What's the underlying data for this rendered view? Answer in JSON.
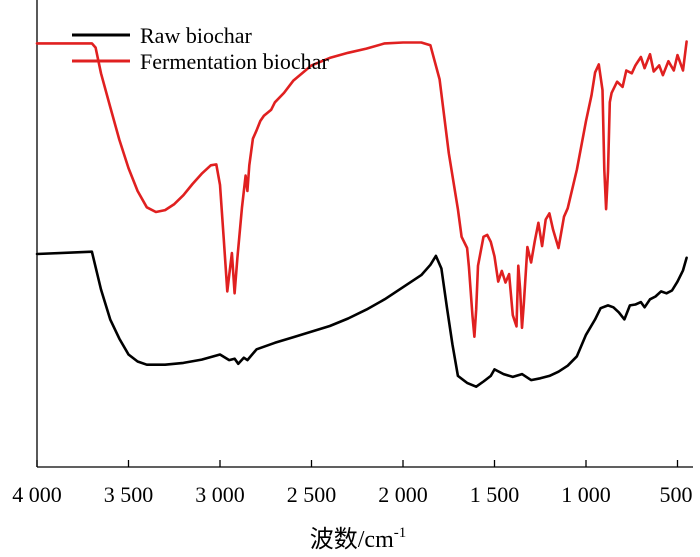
{
  "chart_data": {
    "type": "line",
    "xlabel": "波数/cm",
    "xlabel_superscript": "-1",
    "ylabel": "",
    "xlim": [
      4000,
      450
    ],
    "x_reversed": true,
    "ylim": [
      0,
      100
    ],
    "y_ticks_shown": false,
    "x_ticks": [
      4000,
      3500,
      3000,
      2500,
      2000,
      1500,
      1000,
      500
    ],
    "x_tick_labels": [
      "4 000",
      "3 500",
      "3 000",
      "2 500",
      "2 000",
      "1 500",
      "1 000",
      "500"
    ],
    "grid": false,
    "legend_position": "top-left",
    "series": [
      {
        "name": "Raw biochar",
        "color": "#000000",
        "points": [
          [
            4000,
            45.6
          ],
          [
            3700,
            46.1
          ],
          [
            3650,
            38.0
          ],
          [
            3600,
            31.6
          ],
          [
            3550,
            27.5
          ],
          [
            3500,
            24.1
          ],
          [
            3450,
            22.6
          ],
          [
            3400,
            21.9
          ],
          [
            3300,
            21.9
          ],
          [
            3200,
            22.3
          ],
          [
            3100,
            23.0
          ],
          [
            3000,
            24.1
          ],
          [
            2950,
            22.9
          ],
          [
            2920,
            23.2
          ],
          [
            2900,
            22.1
          ],
          [
            2870,
            23.4
          ],
          [
            2850,
            22.9
          ],
          [
            2800,
            25.2
          ],
          [
            2700,
            26.6
          ],
          [
            2600,
            27.8
          ],
          [
            2500,
            29.0
          ],
          [
            2400,
            30.2
          ],
          [
            2300,
            31.8
          ],
          [
            2200,
            33.7
          ],
          [
            2100,
            35.9
          ],
          [
            2000,
            38.5
          ],
          [
            1900,
            41.1
          ],
          [
            1850,
            43.3
          ],
          [
            1820,
            45.2
          ],
          [
            1790,
            42.5
          ],
          [
            1760,
            34.2
          ],
          [
            1730,
            26.3
          ],
          [
            1700,
            19.5
          ],
          [
            1650,
            18.0
          ],
          [
            1600,
            17.2
          ],
          [
            1560,
            18.3
          ],
          [
            1520,
            19.5
          ],
          [
            1500,
            20.9
          ],
          [
            1450,
            19.9
          ],
          [
            1400,
            19.3
          ],
          [
            1350,
            19.9
          ],
          [
            1300,
            18.6
          ],
          [
            1250,
            19.0
          ],
          [
            1200,
            19.5
          ],
          [
            1150,
            20.4
          ],
          [
            1100,
            21.7
          ],
          [
            1050,
            23.7
          ],
          [
            1000,
            28.3
          ],
          [
            950,
            31.6
          ],
          [
            920,
            34.0
          ],
          [
            880,
            34.6
          ],
          [
            850,
            34.2
          ],
          [
            820,
            33.1
          ],
          [
            790,
            31.6
          ],
          [
            760,
            34.6
          ],
          [
            730,
            34.8
          ],
          [
            700,
            35.3
          ],
          [
            680,
            34.2
          ],
          [
            650,
            35.9
          ],
          [
            620,
            36.5
          ],
          [
            590,
            37.6
          ],
          [
            560,
            37.2
          ],
          [
            530,
            37.8
          ],
          [
            500,
            39.7
          ],
          [
            470,
            42.1
          ],
          [
            450,
            44.8
          ]
        ]
      },
      {
        "name": "Fermentation biochar",
        "color": "#e02020",
        "points": [
          [
            4000,
            90.7
          ],
          [
            3700,
            90.7
          ],
          [
            3680,
            89.8
          ],
          [
            3650,
            84.3
          ],
          [
            3600,
            77.1
          ],
          [
            3550,
            70.1
          ],
          [
            3500,
            64.0
          ],
          [
            3450,
            59.1
          ],
          [
            3400,
            55.6
          ],
          [
            3350,
            54.6
          ],
          [
            3300,
            55.0
          ],
          [
            3250,
            56.3
          ],
          [
            3200,
            58.2
          ],
          [
            3150,
            60.6
          ],
          [
            3100,
            62.8
          ],
          [
            3050,
            64.6
          ],
          [
            3020,
            64.8
          ],
          [
            3000,
            60.4
          ],
          [
            2980,
            49.0
          ],
          [
            2960,
            37.6
          ],
          [
            2950,
            41.1
          ],
          [
            2935,
            45.8
          ],
          [
            2920,
            37.2
          ],
          [
            2905,
            44.8
          ],
          [
            2880,
            55.6
          ],
          [
            2860,
            62.4
          ],
          [
            2850,
            59.1
          ],
          [
            2840,
            64.6
          ],
          [
            2820,
            70.3
          ],
          [
            2800,
            72.1
          ],
          [
            2780,
            74.1
          ],
          [
            2760,
            75.2
          ],
          [
            2720,
            76.5
          ],
          [
            2700,
            78.1
          ],
          [
            2650,
            80.1
          ],
          [
            2600,
            82.7
          ],
          [
            2500,
            86.0
          ],
          [
            2400,
            87.6
          ],
          [
            2300,
            88.7
          ],
          [
            2200,
            89.6
          ],
          [
            2100,
            90.7
          ],
          [
            2000,
            90.9
          ],
          [
            1900,
            90.9
          ],
          [
            1850,
            90.3
          ],
          [
            1800,
            83.0
          ],
          [
            1750,
            67.2
          ],
          [
            1700,
            55.2
          ],
          [
            1680,
            49.3
          ],
          [
            1650,
            46.9
          ],
          [
            1640,
            42.9
          ],
          [
            1620,
            32.3
          ],
          [
            1610,
            27.9
          ],
          [
            1600,
            33.8
          ],
          [
            1590,
            43.1
          ],
          [
            1560,
            49.3
          ],
          [
            1540,
            49.7
          ],
          [
            1520,
            48.2
          ],
          [
            1500,
            45.1
          ],
          [
            1480,
            39.7
          ],
          [
            1460,
            42.0
          ],
          [
            1440,
            39.5
          ],
          [
            1420,
            41.3
          ],
          [
            1400,
            32.5
          ],
          [
            1380,
            30.1
          ],
          [
            1370,
            43.1
          ],
          [
            1360,
            38.1
          ],
          [
            1350,
            29.8
          ],
          [
            1340,
            34.9
          ],
          [
            1320,
            47.1
          ],
          [
            1300,
            43.8
          ],
          [
            1280,
            48.4
          ],
          [
            1260,
            52.3
          ],
          [
            1240,
            47.3
          ],
          [
            1220,
            53.0
          ],
          [
            1200,
            54.3
          ],
          [
            1180,
            50.8
          ],
          [
            1150,
            46.9
          ],
          [
            1120,
            53.6
          ],
          [
            1100,
            55.4
          ],
          [
            1050,
            63.7
          ],
          [
            1000,
            74.1
          ],
          [
            970,
            79.6
          ],
          [
            950,
            84.5
          ],
          [
            930,
            86.2
          ],
          [
            910,
            80.7
          ],
          [
            900,
            63.7
          ],
          [
            890,
            55.2
          ],
          [
            880,
            63.3
          ],
          [
            870,
            78.1
          ],
          [
            860,
            80.1
          ],
          [
            830,
            82.5
          ],
          [
            800,
            81.4
          ],
          [
            780,
            84.9
          ],
          [
            750,
            84.3
          ],
          [
            730,
            86.0
          ],
          [
            700,
            87.8
          ],
          [
            680,
            85.4
          ],
          [
            650,
            88.4
          ],
          [
            630,
            84.7
          ],
          [
            600,
            86.0
          ],
          [
            580,
            83.9
          ],
          [
            550,
            86.9
          ],
          [
            520,
            84.9
          ],
          [
            500,
            88.2
          ],
          [
            470,
            84.9
          ],
          [
            450,
            91.1
          ]
        ]
      }
    ]
  }
}
